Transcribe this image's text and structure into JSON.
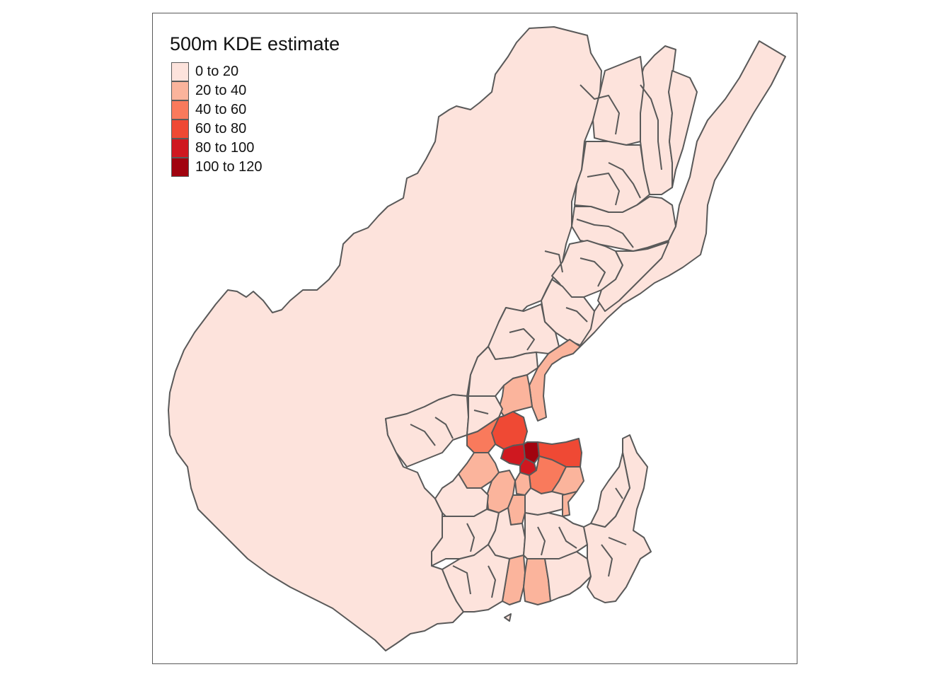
{
  "legend": {
    "title": "500m KDE estimate",
    "items": [
      {
        "label": "0 to 20",
        "color": "#fde3dc"
      },
      {
        "label": "20 to 40",
        "color": "#fbb49c"
      },
      {
        "label": "40 to 60",
        "color": "#f97a5c"
      },
      {
        "label": "60 to 80",
        "color": "#ef4934"
      },
      {
        "label": "80 to 100",
        "color": "#cf1820"
      },
      {
        "label": "100 to 120",
        "color": "#a1030f"
      }
    ]
  },
  "colors": {
    "boundary": "#595959",
    "frame": "#595959",
    "background": "#ffffff"
  }
}
